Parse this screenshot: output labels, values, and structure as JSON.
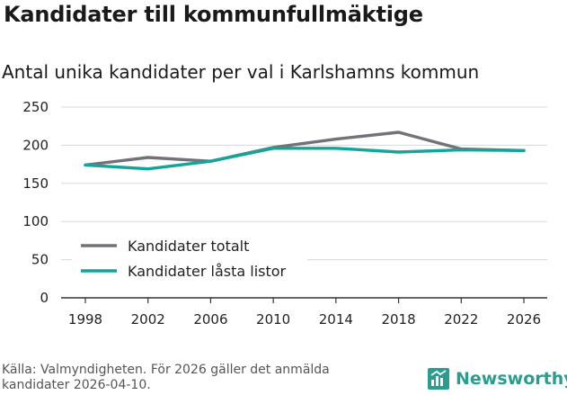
{
  "title": "Kandidater till kommunfullmäktige",
  "subtitle": "Antal unika kandidater per val i Karlshamns kommun",
  "source": "Källa: Valmyndigheten. För 2026 gäller det anmälda kandidater 2026-04-10.",
  "brand": "Newsworthy",
  "chart_data": {
    "type": "line",
    "x": [
      1998,
      2002,
      2006,
      2010,
      2014,
      2018,
      2022,
      2026
    ],
    "series": [
      {
        "name": "Kandidater totalt",
        "color": "#747279",
        "values": [
          174,
          184,
          179,
          197,
          208,
          217,
          195,
          193
        ]
      },
      {
        "name": "Kandidater låsta listor",
        "color": "#14a59a",
        "values": [
          174,
          169,
          179,
          196,
          196,
          191,
          194,
          193
        ]
      }
    ],
    "ylim": [
      0,
      250
    ],
    "yticks": [
      0,
      50,
      100,
      150,
      200,
      250
    ],
    "xlabel": "",
    "ylabel": "",
    "grid": true,
    "legend": "bottom-left"
  }
}
